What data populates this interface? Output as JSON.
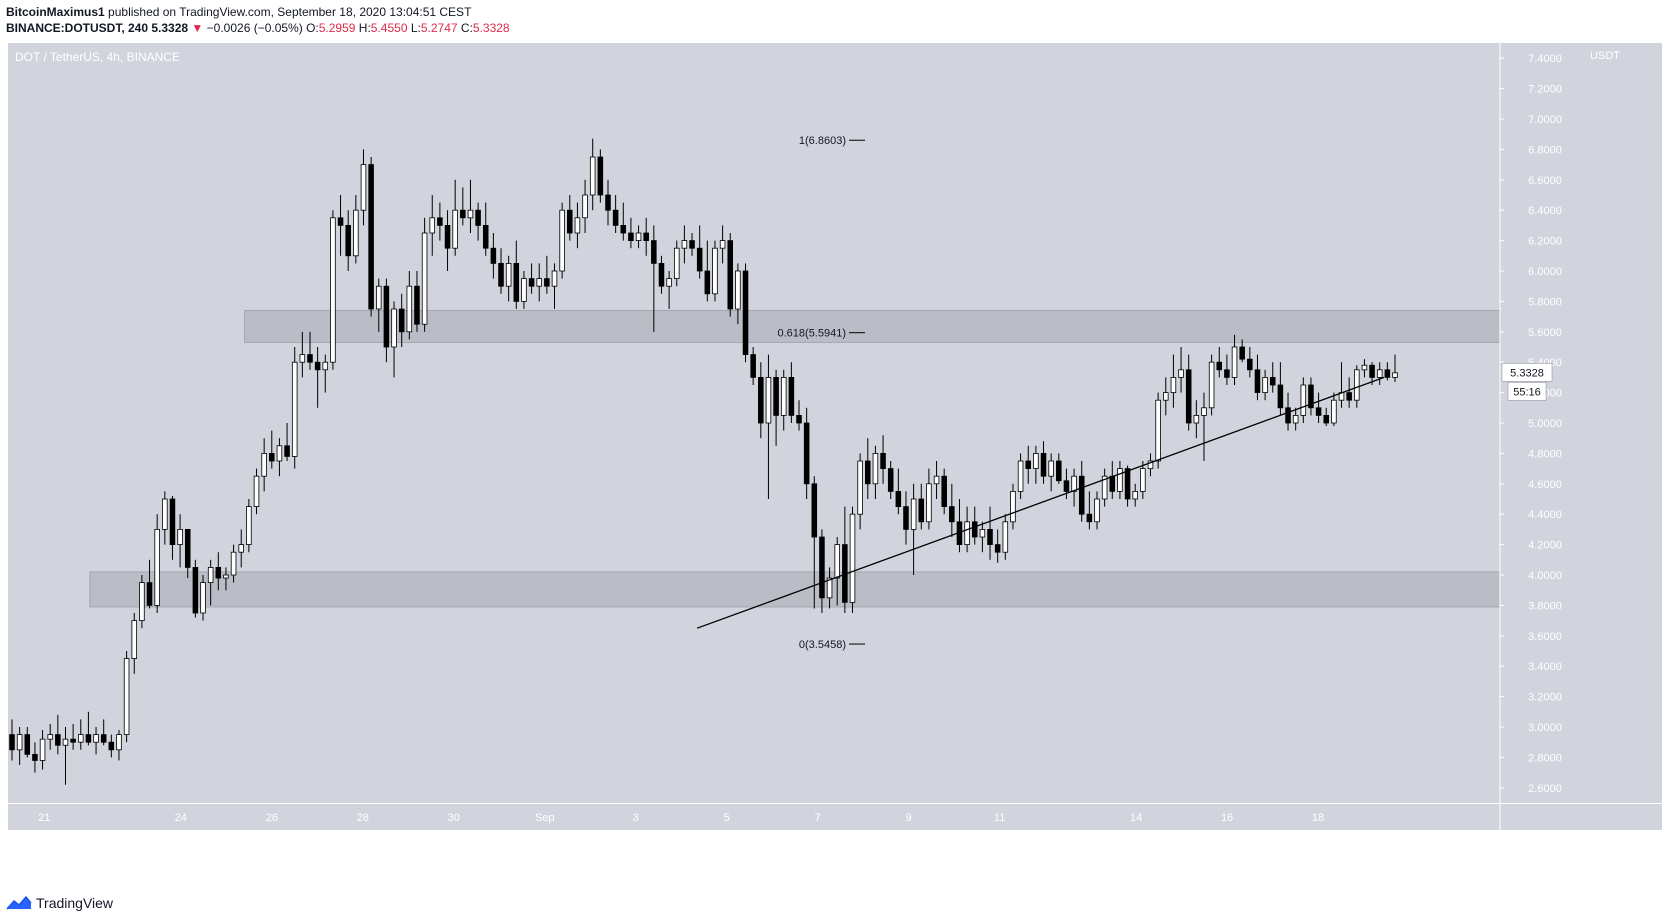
{
  "header": {
    "publisher": "BitcoinMaximus1",
    "published_text": "published on TradingView.com, September 18, 2020 13:04:51 CEST",
    "symbol": "BINANCE:DOTUSDT, 240",
    "price": "5.3328",
    "change": "−0.0026 (−0.05%)",
    "o_label": "O:",
    "o_val": "5.2959",
    "h_label": "H:",
    "h_val": "5.4550",
    "l_label": "L:",
    "l_val": "5.2747",
    "c_label": "C:",
    "c_val": "5.3328"
  },
  "footer": {
    "brand": "TradingView"
  },
  "colors": {
    "chart_bg": "#d1d4dc",
    "zone": "#babdc6",
    "up_fill": "#ffffff",
    "down_fill": "#000000",
    "candle_border": "#000000",
    "price_label_bg": "#ffffff",
    "header_red": "#e0294a"
  },
  "chart_data": {
    "type": "candlestick",
    "pair_label": "DOT / TetherUS, 4h, BINANCE",
    "currency": "USDT",
    "ylim": [
      2.5,
      7.5
    ],
    "yticks": [
      "2.6000",
      "2.8000",
      "3.0000",
      "3.2000",
      "3.4000",
      "3.6000",
      "3.8000",
      "4.0000",
      "4.2000",
      "4.4000",
      "4.6000",
      "4.8000",
      "5.0000",
      "5.2000",
      "5.4000",
      "5.6000",
      "5.8000",
      "6.0000",
      "6.2000",
      "6.4000",
      "6.6000",
      "6.8000",
      "7.0000",
      "7.2000",
      "7.4000"
    ],
    "xlim": [
      20.2,
      53.0
    ],
    "xticks": [
      {
        "label": "21",
        "x": 21.0
      },
      {
        "label": "24",
        "x": 24.0
      },
      {
        "label": "26",
        "x": 26.0
      },
      {
        "label": "28",
        "x": 28.0
      },
      {
        "label": "30",
        "x": 30.0
      },
      {
        "label": "Sep",
        "x": 32.0
      },
      {
        "label": "3",
        "x": 34.0
      },
      {
        "label": "5",
        "x": 36.0
      },
      {
        "label": "7",
        "x": 38.0
      },
      {
        "label": "9",
        "x": 40.0
      },
      {
        "label": "11",
        "x": 42.0
      },
      {
        "label": "14",
        "x": 45.0
      },
      {
        "label": "16",
        "x": 47.0
      },
      {
        "label": "18",
        "x": 49.0
      }
    ],
    "last_price": "5.3328",
    "countdown": "55:16",
    "fib_levels": [
      {
        "label": "1(6.8603)",
        "value": 6.8603
      },
      {
        "label": "0.618(5.5941)",
        "value": 5.5941
      },
      {
        "label": "0(3.5458)",
        "value": 3.5458
      }
    ],
    "zones": [
      {
        "from_x": 25.4,
        "low": 5.53,
        "high": 5.74
      },
      {
        "from_x": 22.0,
        "low": 3.79,
        "high": 4.02
      }
    ],
    "trendline": {
      "x1": 35.35,
      "y1": 3.65,
      "x2": 50.45,
      "y2": 5.3
    },
    "candles": [
      [
        2.95,
        3.05,
        2.78,
        2.85
      ],
      [
        2.85,
        3.0,
        2.75,
        2.95
      ],
      [
        2.95,
        3.0,
        2.8,
        2.82
      ],
      [
        2.82,
        2.9,
        2.7,
        2.78
      ],
      [
        2.78,
        2.98,
        2.72,
        2.92
      ],
      [
        2.92,
        3.02,
        2.85,
        2.95
      ],
      [
        2.95,
        3.08,
        2.82,
        2.88
      ],
      [
        2.88,
        3.0,
        2.62,
        2.92
      ],
      [
        2.92,
        3.02,
        2.85,
        2.9
      ],
      [
        2.9,
        3.05,
        2.85,
        2.95
      ],
      [
        2.95,
        3.1,
        2.88,
        2.9
      ],
      [
        2.9,
        3.0,
        2.82,
        2.95
      ],
      [
        2.95,
        3.05,
        2.88,
        2.9
      ],
      [
        2.9,
        2.95,
        2.8,
        2.85
      ],
      [
        2.85,
        2.98,
        2.78,
        2.95
      ],
      [
        2.95,
        3.5,
        2.9,
        3.45
      ],
      [
        3.45,
        3.75,
        3.35,
        3.7
      ],
      [
        3.7,
        4.0,
        3.65,
        3.95
      ],
      [
        3.95,
        4.1,
        3.78,
        3.8
      ],
      [
        3.8,
        4.4,
        3.75,
        4.3
      ],
      [
        4.3,
        4.55,
        4.2,
        4.5
      ],
      [
        4.5,
        4.52,
        4.1,
        4.2
      ],
      [
        4.2,
        4.4,
        4.05,
        4.3
      ],
      [
        4.3,
        4.3,
        3.98,
        4.05
      ],
      [
        4.05,
        4.1,
        3.72,
        3.75
      ],
      [
        3.75,
        4.0,
        3.7,
        3.95
      ],
      [
        3.95,
        4.1,
        3.8,
        4.05
      ],
      [
        4.05,
        4.15,
        3.9,
        3.98
      ],
      [
        3.98,
        4.05,
        3.9,
        4.0
      ],
      [
        4.0,
        4.2,
        3.95,
        4.15
      ],
      [
        4.15,
        4.3,
        4.05,
        4.2
      ],
      [
        4.2,
        4.5,
        4.15,
        4.45
      ],
      [
        4.45,
        4.7,
        4.4,
        4.65
      ],
      [
        4.65,
        4.9,
        4.55,
        4.8
      ],
      [
        4.8,
        4.95,
        4.7,
        4.75
      ],
      [
        4.75,
        4.9,
        4.65,
        4.85
      ],
      [
        4.85,
        5.0,
        4.75,
        4.78
      ],
      [
        4.78,
        5.5,
        4.7,
        5.4
      ],
      [
        5.4,
        5.6,
        5.3,
        5.45
      ],
      [
        5.45,
        5.6,
        5.35,
        5.4
      ],
      [
        5.4,
        5.5,
        5.1,
        5.35
      ],
      [
        5.35,
        5.45,
        5.2,
        5.4
      ],
      [
        5.4,
        6.4,
        5.35,
        6.35
      ],
      [
        6.35,
        6.5,
        6.1,
        6.3
      ],
      [
        6.3,
        6.4,
        6.0,
        6.1
      ],
      [
        6.1,
        6.5,
        6.05,
        6.4
      ],
      [
        6.4,
        6.8,
        6.3,
        6.7
      ],
      [
        6.7,
        6.75,
        5.7,
        5.75
      ],
      [
        5.75,
        5.95,
        5.6,
        5.9
      ],
      [
        5.9,
        5.95,
        5.4,
        5.5
      ],
      [
        5.5,
        5.8,
        5.3,
        5.75
      ],
      [
        5.75,
        5.85,
        5.5,
        5.6
      ],
      [
        5.6,
        6.0,
        5.55,
        5.9
      ],
      [
        5.9,
        6.0,
        5.6,
        5.65
      ],
      [
        5.65,
        6.35,
        5.6,
        6.25
      ],
      [
        6.25,
        6.5,
        6.1,
        6.35
      ],
      [
        6.35,
        6.45,
        6.2,
        6.3
      ],
      [
        6.3,
        6.4,
        6.0,
        6.15
      ],
      [
        6.15,
        6.6,
        6.1,
        6.4
      ],
      [
        6.4,
        6.55,
        6.3,
        6.35
      ],
      [
        6.35,
        6.6,
        6.25,
        6.4
      ],
      [
        6.4,
        6.45,
        6.2,
        6.3
      ],
      [
        6.3,
        6.45,
        6.1,
        6.15
      ],
      [
        6.15,
        6.25,
        5.95,
        6.05
      ],
      [
        6.05,
        6.15,
        5.85,
        5.9
      ],
      [
        5.9,
        6.1,
        5.8,
        6.05
      ],
      [
        6.05,
        6.2,
        5.75,
        5.8
      ],
      [
        5.8,
        6.0,
        5.75,
        5.95
      ],
      [
        5.95,
        6.05,
        5.85,
        5.9
      ],
      [
        5.9,
        6.05,
        5.8,
        5.95
      ],
      [
        5.95,
        6.1,
        5.85,
        5.9
      ],
      [
        5.9,
        6.05,
        5.75,
        6.0
      ],
      [
        6.0,
        6.45,
        5.95,
        6.4
      ],
      [
        6.4,
        6.5,
        6.2,
        6.25
      ],
      [
        6.25,
        6.45,
        6.15,
        6.35
      ],
      [
        6.35,
        6.6,
        6.25,
        6.5
      ],
      [
        6.5,
        6.87,
        6.4,
        6.75
      ],
      [
        6.75,
        6.8,
        6.45,
        6.5
      ],
      [
        6.5,
        6.6,
        6.3,
        6.4
      ],
      [
        6.4,
        6.5,
        6.25,
        6.3
      ],
      [
        6.3,
        6.45,
        6.2,
        6.25
      ],
      [
        6.25,
        6.35,
        6.15,
        6.2
      ],
      [
        6.2,
        6.3,
        6.15,
        6.25
      ],
      [
        6.25,
        6.35,
        6.1,
        6.2
      ],
      [
        6.2,
        6.3,
        5.6,
        6.05
      ],
      [
        6.05,
        6.1,
        5.85,
        5.9
      ],
      [
        5.9,
        6.0,
        5.75,
        5.95
      ],
      [
        5.95,
        6.2,
        5.9,
        6.15
      ],
      [
        6.15,
        6.3,
        6.05,
        6.2
      ],
      [
        6.2,
        6.25,
        6.1,
        6.15
      ],
      [
        6.15,
        6.3,
        5.95,
        6.0
      ],
      [
        6.0,
        6.2,
        5.8,
        5.85
      ],
      [
        5.85,
        6.2,
        5.8,
        6.15
      ],
      [
        6.15,
        6.3,
        6.05,
        6.2
      ],
      [
        6.2,
        6.25,
        5.7,
        5.75
      ],
      [
        5.75,
        6.05,
        5.65,
        6.0
      ],
      [
        6.0,
        6.05,
        5.4,
        5.45
      ],
      [
        5.45,
        5.5,
        5.25,
        5.3
      ],
      [
        5.3,
        5.4,
        4.9,
        5.0
      ],
      [
        5.0,
        5.45,
        4.5,
        5.3
      ],
      [
        5.3,
        5.35,
        4.85,
        5.05
      ],
      [
        5.05,
        5.35,
        4.95,
        5.3
      ],
      [
        5.3,
        5.4,
        5.0,
        5.05
      ],
      [
        5.05,
        5.15,
        4.95,
        5.0
      ],
      [
        5.0,
        5.1,
        4.5,
        4.6
      ],
      [
        4.6,
        4.65,
        3.78,
        4.25
      ],
      [
        4.25,
        4.3,
        3.75,
        3.85
      ],
      [
        3.85,
        4.05,
        3.78,
        3.98
      ],
      [
        3.98,
        4.25,
        3.8,
        4.2
      ],
      [
        4.2,
        4.45,
        3.75,
        3.82
      ],
      [
        3.82,
        4.45,
        3.75,
        4.4
      ],
      [
        4.4,
        4.8,
        4.3,
        4.75
      ],
      [
        4.75,
        4.9,
        4.5,
        4.6
      ],
      [
        4.6,
        4.85,
        4.5,
        4.8
      ],
      [
        4.8,
        4.92,
        4.6,
        4.7
      ],
      [
        4.7,
        4.75,
        4.5,
        4.55
      ],
      [
        4.55,
        4.7,
        4.4,
        4.45
      ],
      [
        4.45,
        4.55,
        4.2,
        4.3
      ],
      [
        4.3,
        4.6,
        4.0,
        4.5
      ],
      [
        4.5,
        4.6,
        4.3,
        4.35
      ],
      [
        4.35,
        4.7,
        4.3,
        4.6
      ],
      [
        4.6,
        4.75,
        4.5,
        4.65
      ],
      [
        4.65,
        4.7,
        4.4,
        4.45
      ],
      [
        4.45,
        4.6,
        4.25,
        4.35
      ],
      [
        4.35,
        4.5,
        4.15,
        4.2
      ],
      [
        4.2,
        4.45,
        4.15,
        4.35
      ],
      [
        4.35,
        4.45,
        4.2,
        4.25
      ],
      [
        4.25,
        4.35,
        4.15,
        4.3
      ],
      [
        4.3,
        4.45,
        4.1,
        4.2
      ],
      [
        4.2,
        4.3,
        4.08,
        4.15
      ],
      [
        4.15,
        4.4,
        4.1,
        4.35
      ],
      [
        4.35,
        4.6,
        4.3,
        4.55
      ],
      [
        4.55,
        4.8,
        4.5,
        4.75
      ],
      [
        4.75,
        4.85,
        4.6,
        4.7
      ],
      [
        4.7,
        4.85,
        4.6,
        4.8
      ],
      [
        4.8,
        4.88,
        4.6,
        4.65
      ],
      [
        4.65,
        4.8,
        4.55,
        4.75
      ],
      [
        4.75,
        4.8,
        4.6,
        4.62
      ],
      [
        4.62,
        4.7,
        4.5,
        4.55
      ],
      [
        4.55,
        4.7,
        4.45,
        4.65
      ],
      [
        4.65,
        4.75,
        4.35,
        4.4
      ],
      [
        4.4,
        4.55,
        4.3,
        4.35
      ],
      [
        4.35,
        4.55,
        4.3,
        4.5
      ],
      [
        4.5,
        4.7,
        4.45,
        4.65
      ],
      [
        4.65,
        4.75,
        4.5,
        4.55
      ],
      [
        4.55,
        4.75,
        4.5,
        4.7
      ],
      [
        4.7,
        4.72,
        4.45,
        4.5
      ],
      [
        4.5,
        4.6,
        4.45,
        4.55
      ],
      [
        4.55,
        4.75,
        4.5,
        4.7
      ],
      [
        4.7,
        4.8,
        4.65,
        4.75
      ],
      [
        4.75,
        5.2,
        4.7,
        5.15
      ],
      [
        5.15,
        5.3,
        5.05,
        5.2
      ],
      [
        5.2,
        5.45,
        5.1,
        5.3
      ],
      [
        5.3,
        5.5,
        5.2,
        5.35
      ],
      [
        5.35,
        5.45,
        4.95,
        5.0
      ],
      [
        5.0,
        5.15,
        4.9,
        5.05
      ],
      [
        5.05,
        5.2,
        4.75,
        5.1
      ],
      [
        5.1,
        5.45,
        5.05,
        5.4
      ],
      [
        5.4,
        5.5,
        5.3,
        5.35
      ],
      [
        5.35,
        5.45,
        5.25,
        5.3
      ],
      [
        5.3,
        5.58,
        5.25,
        5.5
      ],
      [
        5.5,
        5.55,
        5.4,
        5.42
      ],
      [
        5.42,
        5.5,
        5.3,
        5.35
      ],
      [
        5.35,
        5.45,
        5.15,
        5.2
      ],
      [
        5.2,
        5.35,
        5.15,
        5.3
      ],
      [
        5.3,
        5.4,
        5.2,
        5.25
      ],
      [
        5.25,
        5.4,
        5.05,
        5.1
      ],
      [
        5.1,
        5.2,
        4.95,
        5.0
      ],
      [
        5.0,
        5.1,
        4.95,
        5.05
      ],
      [
        5.05,
        5.3,
        5.0,
        5.25
      ],
      [
        5.25,
        5.3,
        5.05,
        5.1
      ],
      [
        5.1,
        5.2,
        5.0,
        5.05
      ],
      [
        5.05,
        5.1,
        4.98,
        5.0
      ],
      [
        5.0,
        5.2,
        4.98,
        5.15
      ],
      [
        5.15,
        5.4,
        5.1,
        5.2
      ],
      [
        5.2,
        5.3,
        5.1,
        5.15
      ],
      [
        5.15,
        5.38,
        5.1,
        5.35
      ],
      [
        5.35,
        5.42,
        5.3,
        5.38
      ],
      [
        5.38,
        5.4,
        5.25,
        5.3
      ],
      [
        5.3,
        5.4,
        5.25,
        5.35
      ],
      [
        5.35,
        5.4,
        5.28,
        5.3
      ],
      [
        5.3,
        5.45,
        5.27,
        5.33
      ]
    ]
  }
}
